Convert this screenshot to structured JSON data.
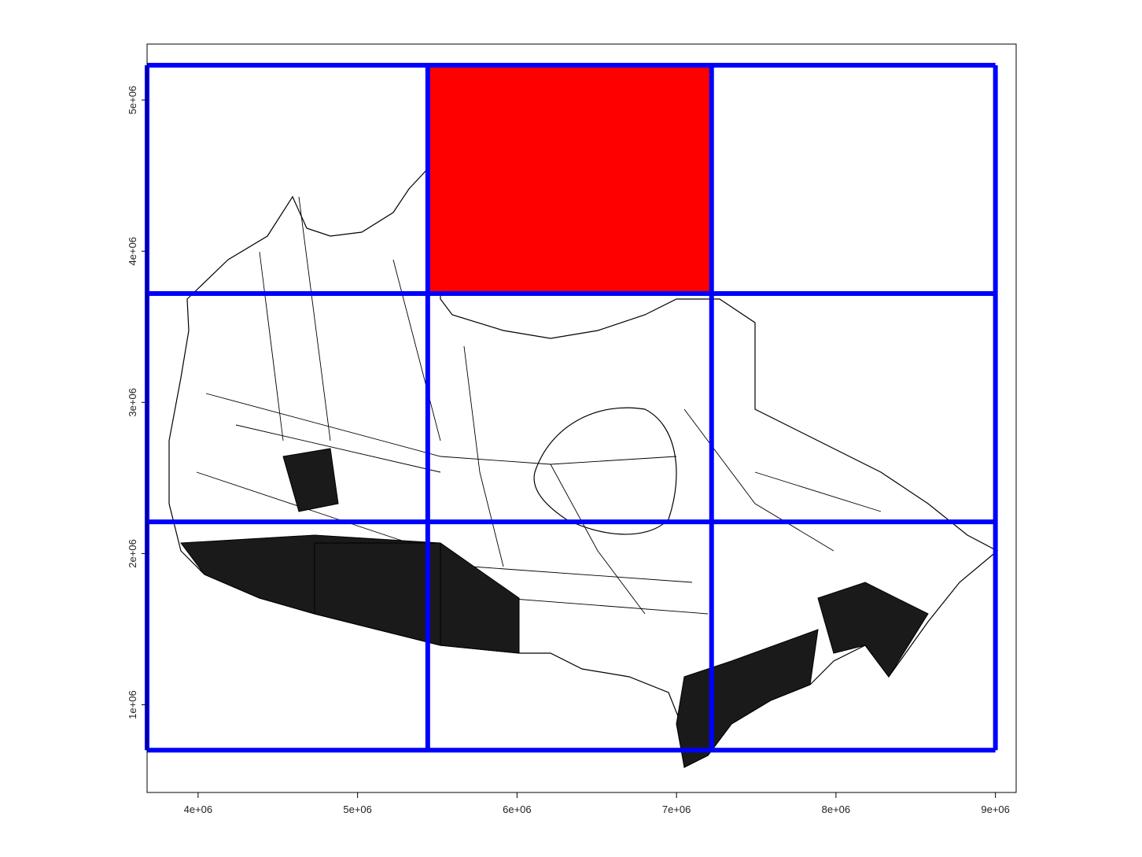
{
  "chart_data": {
    "type": "map",
    "title": "",
    "xlabel": "",
    "ylabel": "",
    "xlim": [
      3680000,
      9130000
    ],
    "ylim": [
      420000,
      5370000
    ],
    "x_ticks": [
      {
        "value": 4000000,
        "label": "4e+06"
      },
      {
        "value": 5000000,
        "label": "5e+06"
      },
      {
        "value": 6000000,
        "label": "6e+06"
      },
      {
        "value": 7000000,
        "label": "7e+06"
      },
      {
        "value": 8000000,
        "label": "8e+06"
      },
      {
        "value": 9000000,
        "label": "9e+06"
      }
    ],
    "y_ticks": [
      {
        "value": 1000000,
        "label": "1e+06"
      },
      {
        "value": 2000000,
        "label": "2e+06"
      },
      {
        "value": 3000000,
        "label": "3e+06"
      },
      {
        "value": 4000000,
        "label": "4e+06"
      },
      {
        "value": 5000000,
        "label": "5e+06"
      }
    ],
    "grid": {
      "x_breaks": [
        3680000,
        5440000,
        7220000,
        9000000
      ],
      "y_breaks": [
        700000,
        2210000,
        3720000,
        5230000
      ],
      "line_color": "#0000ff"
    },
    "highlight_cell": {
      "col": 1,
      "row": 2,
      "color": "#ff0000"
    },
    "basemap": {
      "stroke": "#000000"
    }
  }
}
